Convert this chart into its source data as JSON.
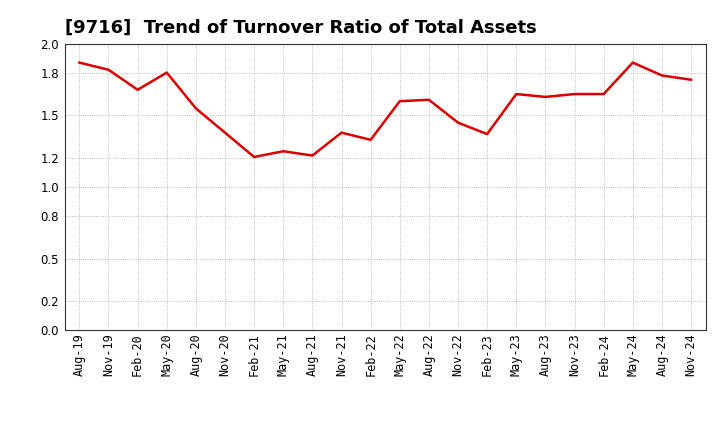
{
  "title": "[9716]  Trend of Turnover Ratio of Total Assets",
  "x_labels": [
    "Aug-19",
    "Nov-19",
    "Feb-20",
    "May-20",
    "Aug-20",
    "Nov-20",
    "Feb-21",
    "May-21",
    "Aug-21",
    "Nov-21",
    "Feb-22",
    "May-22",
    "Aug-22",
    "Nov-22",
    "Feb-23",
    "May-23",
    "Aug-23",
    "Nov-23",
    "Feb-24",
    "May-24",
    "Aug-24",
    "Nov-24"
  ],
  "y_values": [
    1.87,
    1.82,
    1.68,
    1.8,
    1.55,
    1.38,
    1.21,
    1.25,
    1.22,
    1.38,
    1.33,
    1.6,
    1.61,
    1.45,
    1.37,
    1.65,
    1.63,
    1.65,
    1.65,
    1.87,
    1.78,
    1.75
  ],
  "line_color": "#dd0000",
  "ylim": [
    0.0,
    2.0
  ],
  "yticks": [
    0.0,
    0.2,
    0.5,
    0.8,
    1.0,
    1.2,
    1.5,
    1.8,
    2.0
  ],
  "background_color": "#ffffff",
  "grid_color": "#aaaaaa",
  "title_fontsize": 13,
  "tick_fontsize": 8.5,
  "line_width": 1.8
}
